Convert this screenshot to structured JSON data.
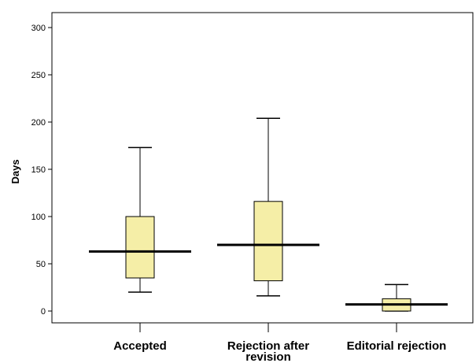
{
  "chart_data": {
    "type": "box",
    "title": "",
    "xlabel": "",
    "ylabel": "Days",
    "ylim": [
      -10,
      310
    ],
    "y_ticks": [
      "0",
      "50",
      "100",
      "150",
      "200",
      "250",
      "300"
    ],
    "categories": [
      {
        "label_lines": [
          "Accepted"
        ],
        "whisker_low": 20,
        "q1": 35,
        "median": 63,
        "q3": 100,
        "whisker_high": 173
      },
      {
        "label_lines": [
          "Rejection after",
          "revision"
        ],
        "whisker_low": 16,
        "q1": 32,
        "median": 70,
        "q3": 116,
        "whisker_high": 204
      },
      {
        "label_lines": [
          "Editorial rejection"
        ],
        "whisker_low": 0,
        "q1": 0,
        "median": 7,
        "q3": 13,
        "whisker_high": 28
      }
    ],
    "box_color": "#f5eea7",
    "grid": false
  }
}
